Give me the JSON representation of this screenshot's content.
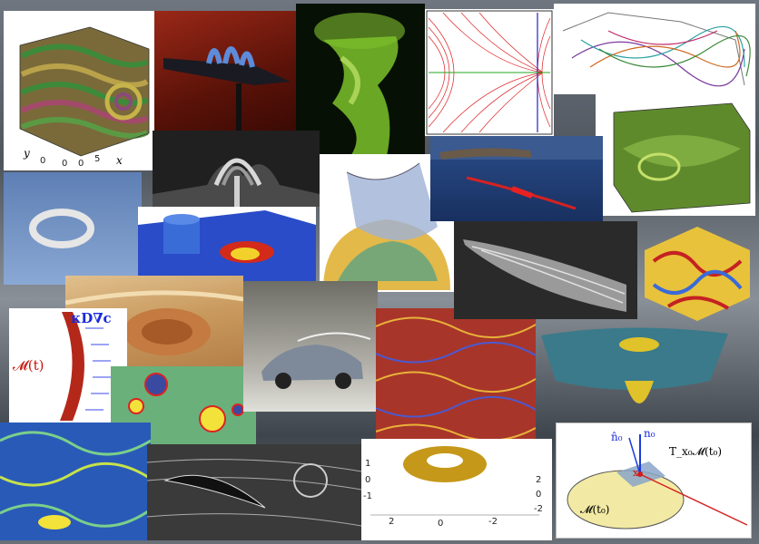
{
  "collage": {
    "cube_axes": {
      "y": "y",
      "x": "x",
      "ticks": [
        "0",
        "0",
        "0",
        "5"
      ]
    },
    "membrane": {
      "flux": "κD∇c",
      "surface": "𝓜(t)"
    },
    "torus_axes": {
      "ticks": [
        "1",
        "0",
        "-1",
        "2",
        "0",
        "-2",
        "2",
        "0",
        "-2"
      ]
    },
    "tangent": {
      "normal_hat": "n̂₀",
      "normal": "n₀",
      "plane": "T_x₀𝓜(t₀)",
      "point": "x₀",
      "surface": "𝓜(t₀)"
    }
  }
}
